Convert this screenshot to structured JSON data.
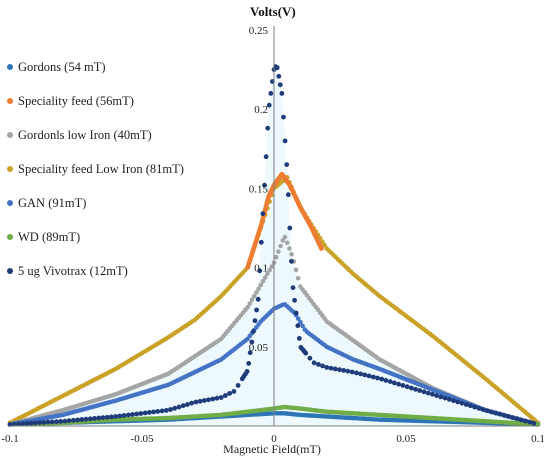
{
  "chart_data": {
    "type": "scatter",
    "title": "",
    "ylabel": "Volts(V)",
    "xlabel": "Magnetic  Field(mT)",
    "xlim": [
      -0.1,
      0.1
    ],
    "ylim": [
      0,
      0.25
    ],
    "x_ticks": [
      -0.1,
      -0.05,
      0,
      0.05,
      0.1
    ],
    "x_tick_labels": [
      "-0.1",
      "-0.05",
      "0",
      "0.05",
      "0.1"
    ],
    "y_ticks": [
      0.05,
      0.1,
      0.15,
      0.2,
      0.25
    ],
    "y_tick_labels": [
      "0.05",
      "0.1",
      "0.15",
      "0.2",
      "0.25"
    ],
    "grid": false,
    "legend_position": "left",
    "series": [
      {
        "name": "Gordons (54 mT)",
        "color": "#2E75B6",
        "marker": "dot",
        "x": [
          -0.1,
          -0.08,
          -0.06,
          -0.04,
          -0.02,
          -0.01,
          0,
          0.004,
          0.01,
          0.02,
          0.04,
          0.06,
          0.08,
          0.1
        ],
        "y": [
          0.001,
          0.002,
          0.003,
          0.004,
          0.006,
          0.007,
          0.008,
          0.008,
          0.007,
          0.006,
          0.004,
          0.003,
          0.002,
          0.001
        ]
      },
      {
        "name": "Speciality feed (56mT)",
        "color": "#ED7D31",
        "marker": "dot",
        "x": [
          -0.01,
          -0.005,
          -0.002,
          0,
          0.003,
          0.006,
          0.01,
          0.014,
          0.018
        ],
        "y": [
          0.1,
          0.126,
          0.145,
          0.152,
          0.159,
          0.152,
          0.138,
          0.126,
          0.112
        ]
      },
      {
        "name": "Gordonls low Iron (40mT)",
        "color": "#A5A5A5",
        "marker": "dot",
        "x": [
          -0.1,
          -0.08,
          -0.06,
          -0.04,
          -0.02,
          -0.01,
          0,
          0.004,
          0.007,
          0.01,
          0.02,
          0.04,
          0.06,
          0.08,
          0.1
        ],
        "y": [
          0.001,
          0.01,
          0.02,
          0.033,
          0.055,
          0.075,
          0.103,
          0.12,
          0.107,
          0.088,
          0.066,
          0.042,
          0.024,
          0.01,
          0.001
        ]
      },
      {
        "name": "Speciality feed Low Iron (81mT)",
        "color": "#C9A227",
        "marker": "dot",
        "x": [
          -0.1,
          -0.08,
          -0.06,
          -0.04,
          -0.03,
          -0.02,
          -0.01,
          -0.005,
          0,
          0.005,
          0.01,
          0.015,
          0.02,
          0.03,
          0.04,
          0.06,
          0.08,
          0.1
        ],
        "y": [
          0.002,
          0.019,
          0.036,
          0.056,
          0.067,
          0.082,
          0.1,
          0.125,
          0.15,
          0.157,
          0.138,
          0.125,
          0.112,
          0.096,
          0.082,
          0.057,
          0.03,
          0.002
        ]
      },
      {
        "name": "GAN (91mT)",
        "color": "#4472C4",
        "marker": "dot",
        "x": [
          -0.1,
          -0.08,
          -0.06,
          -0.04,
          -0.02,
          -0.01,
          -0.005,
          0,
          0.004,
          0.008,
          0.012,
          0.02,
          0.03,
          0.04,
          0.06,
          0.08,
          0.1
        ],
        "y": [
          0.001,
          0.007,
          0.016,
          0.026,
          0.042,
          0.055,
          0.066,
          0.074,
          0.077,
          0.071,
          0.06,
          0.05,
          0.042,
          0.036,
          0.023,
          0.01,
          0.001
        ]
      },
      {
        "name": "WD (89mT)",
        "color": "#70AD47",
        "marker": "dot",
        "x": [
          -0.1,
          -0.08,
          -0.06,
          -0.04,
          -0.02,
          -0.01,
          0,
          0.004,
          0.01,
          0.02,
          0.04,
          0.06,
          0.08,
          0.1
        ],
        "y": [
          0.001,
          0.002,
          0.004,
          0.005,
          0.007,
          0.009,
          0.011,
          0.012,
          0.011,
          0.009,
          0.007,
          0.005,
          0.003,
          0.001
        ]
      },
      {
        "name": "5 ug Vivotrax (12mT)",
        "color": "#1F3B7A",
        "marker": "dot",
        "x": [
          -0.1,
          -0.08,
          -0.06,
          -0.04,
          -0.03,
          -0.02,
          -0.015,
          -0.01,
          -0.006,
          -0.004,
          -0.002,
          0,
          0.001,
          0.003,
          0.005,
          0.007,
          0.01,
          0.015,
          0.02,
          0.03,
          0.04,
          0.06,
          0.08,
          0.1
        ],
        "y": [
          0.001,
          0.003,
          0.006,
          0.01,
          0.015,
          0.018,
          0.022,
          0.035,
          0.08,
          0.14,
          0.2,
          0.225,
          0.228,
          0.21,
          0.16,
          0.09,
          0.05,
          0.04,
          0.037,
          0.034,
          0.03,
          0.02,
          0.01,
          0.001
        ]
      }
    ]
  }
}
